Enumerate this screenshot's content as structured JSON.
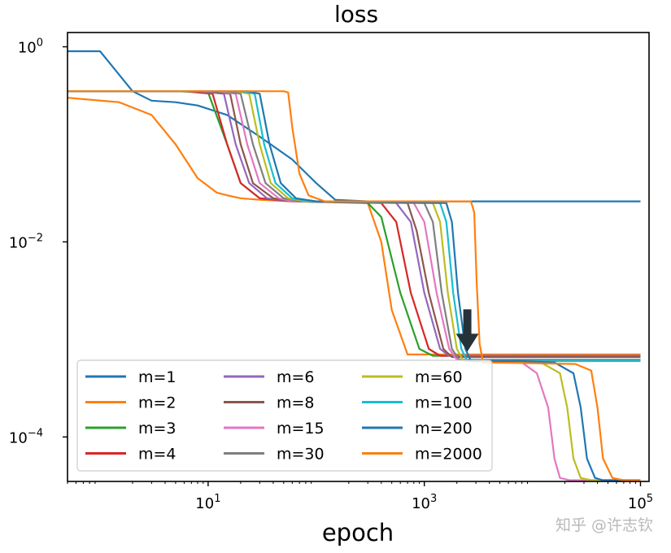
{
  "chart_data": {
    "type": "line",
    "title": "loss",
    "xlabel": "epoch",
    "ylabel": "",
    "xscale": "log",
    "yscale": "log",
    "xlim": [
      0.5,
      120000
    ],
    "ylim": [
      3.5e-05,
      1.4
    ],
    "xticks": [
      {
        "value": 10,
        "base": "10",
        "exp": "1"
      },
      {
        "value": 1000,
        "base": "10",
        "exp": "3"
      },
      {
        "value": 100000,
        "base": "10",
        "exp": "5"
      }
    ],
    "yticks": [
      {
        "value": 1,
        "base": "10",
        "exp": "0"
      },
      {
        "value": 0.01,
        "base": "10",
        "exp": "−2"
      },
      {
        "value": 0.0001,
        "base": "10",
        "exp": "−4"
      }
    ],
    "grid": false,
    "legend_position": "lower-left",
    "legend_columns": 3,
    "annotation": {
      "type": "arrow-down",
      "x": 2500,
      "y": 0.00075,
      "color": "#263238"
    },
    "series": [
      {
        "name": "m=1",
        "color": "#1f77b4",
        "x": [
          0.5,
          1,
          2,
          3,
          5,
          8,
          15,
          30,
          60,
          100,
          150,
          300,
          1000,
          10000,
          100000
        ],
        "y": [
          0.9,
          0.9,
          0.35,
          0.28,
          0.27,
          0.25,
          0.2,
          0.12,
          0.07,
          0.04,
          0.027,
          0.026,
          0.026,
          0.026,
          0.026
        ]
      },
      {
        "name": "m=2",
        "color": "#ff7f0e",
        "x": [
          0.5,
          1.5,
          3,
          5,
          8,
          12,
          15,
          20,
          30,
          60,
          150,
          300,
          400,
          500,
          700,
          1000,
          5000,
          20000,
          100000
        ],
        "y": [
          0.3,
          0.27,
          0.2,
          0.1,
          0.045,
          0.032,
          0.03,
          0.028,
          0.027,
          0.026,
          0.026,
          0.025,
          0.01,
          0.002,
          0.0007,
          0.0007,
          0.0007,
          0.0007,
          0.0007
        ]
      },
      {
        "name": "m=3",
        "color": "#2ca02c",
        "x": [
          0.5,
          5,
          10,
          15,
          20,
          30,
          60,
          300,
          400,
          600,
          900,
          1200,
          5000,
          20000,
          100000
        ],
        "y": [
          0.35,
          0.35,
          0.34,
          0.1,
          0.04,
          0.028,
          0.026,
          0.025,
          0.018,
          0.003,
          0.0008,
          0.00068,
          0.00068,
          0.00068,
          0.00068
        ]
      },
      {
        "name": "m=4",
        "color": "#d62728",
        "x": [
          0.5,
          6,
          11,
          15,
          20,
          30,
          60,
          400,
          550,
          750,
          1100,
          1400,
          5000,
          100000
        ],
        "y": [
          0.35,
          0.35,
          0.33,
          0.1,
          0.04,
          0.028,
          0.026,
          0.025,
          0.016,
          0.003,
          0.0008,
          0.00068,
          0.00068,
          0.00068
        ]
      },
      {
        "name": "m=6",
        "color": "#9467bd",
        "x": [
          0.5,
          8,
          14,
          18,
          24,
          35,
          60,
          550,
          750,
          1000,
          1400,
          1700,
          5000,
          100000
        ],
        "y": [
          0.35,
          0.35,
          0.33,
          0.1,
          0.04,
          0.028,
          0.026,
          0.025,
          0.016,
          0.003,
          0.0008,
          0.00068,
          0.00068,
          0.00068
        ]
      },
      {
        "name": "m=8",
        "color": "#8c564b",
        "x": [
          0.5,
          10,
          16,
          20,
          26,
          40,
          60,
          700,
          850,
          1100,
          1500,
          1800,
          5000,
          100000
        ],
        "y": [
          0.35,
          0.35,
          0.33,
          0.1,
          0.04,
          0.028,
          0.026,
          0.025,
          0.013,
          0.003,
          0.0008,
          0.00066,
          0.00066,
          0.00066
        ]
      },
      {
        "name": "m=15",
        "color": "#e377c2",
        "x": [
          0.5,
          12,
          18,
          23,
          30,
          45,
          60,
          800,
          1000,
          1300,
          1700,
          2000,
          5000,
          8000,
          11000,
          14000,
          16000,
          18000,
          22000,
          30000,
          100000
        ],
        "y": [
          0.35,
          0.35,
          0.33,
          0.1,
          0.04,
          0.028,
          0.026,
          0.025,
          0.016,
          0.003,
          0.0008,
          0.00062,
          0.0006,
          0.00058,
          0.00045,
          0.0002,
          6e-05,
          3.8e-05,
          3.6e-05,
          3.6e-05,
          3.6e-05
        ]
      },
      {
        "name": "m=30",
        "color": "#7f7f7f",
        "x": [
          0.5,
          14,
          20,
          26,
          34,
          50,
          70,
          1000,
          1200,
          1450,
          1800,
          2100,
          5000,
          100000
        ],
        "y": [
          0.35,
          0.35,
          0.33,
          0.1,
          0.04,
          0.028,
          0.026,
          0.025,
          0.016,
          0.003,
          0.0008,
          0.00062,
          0.00062,
          0.00062
        ]
      },
      {
        "name": "m=60",
        "color": "#bcbd22",
        "x": [
          0.5,
          18,
          24,
          30,
          38,
          55,
          80,
          1200,
          1400,
          1650,
          2000,
          2300,
          6000,
          12000,
          18000,
          21000,
          24000,
          28000,
          35000,
          100000
        ],
        "y": [
          0.35,
          0.35,
          0.33,
          0.1,
          0.04,
          0.028,
          0.026,
          0.025,
          0.016,
          0.003,
          0.0008,
          0.0006,
          0.0006,
          0.00058,
          0.00045,
          0.0002,
          6e-05,
          3.8e-05,
          3.6e-05,
          3.6e-05
        ]
      },
      {
        "name": "m=100",
        "color": "#17becf",
        "x": [
          0.5,
          20,
          27,
          33,
          42,
          60,
          90,
          1400,
          1600,
          1850,
          2200,
          2500,
          100000
        ],
        "y": [
          0.35,
          0.35,
          0.33,
          0.1,
          0.04,
          0.028,
          0.026,
          0.025,
          0.016,
          0.003,
          0.0008,
          0.0006,
          0.0006
        ]
      },
      {
        "name": "m=200",
        "color": "#1f77b4",
        "x": [
          0.5,
          23,
          30,
          37,
          47,
          65,
          100,
          1600,
          1800,
          2050,
          2400,
          2700,
          8000,
          16000,
          24000,
          28000,
          32000,
          38000,
          45000,
          100000
        ],
        "y": [
          0.35,
          0.35,
          0.33,
          0.1,
          0.04,
          0.028,
          0.026,
          0.025,
          0.016,
          0.003,
          0.0008,
          0.0006,
          0.0006,
          0.00058,
          0.00045,
          0.0002,
          6e-05,
          3.8e-05,
          3.6e-05,
          3.6e-05
        ]
      },
      {
        "name": "m=2000",
        "color": "#ff7f0e",
        "x": [
          0.5,
          50,
          55,
          60,
          70,
          85,
          120,
          2700,
          2900,
          3050,
          3250,
          3500,
          10000,
          25000,
          35000,
          40000,
          45000,
          55000,
          70000,
          100000
        ],
        "y": [
          0.35,
          0.35,
          0.34,
          0.15,
          0.05,
          0.03,
          0.026,
          0.026,
          0.02,
          0.004,
          0.0009,
          0.00058,
          0.00057,
          0.00056,
          0.00048,
          0.0002,
          6e-05,
          3.8e-05,
          3.6e-05,
          3.6e-05
        ]
      }
    ]
  },
  "watermark": "知乎 @许志钦"
}
